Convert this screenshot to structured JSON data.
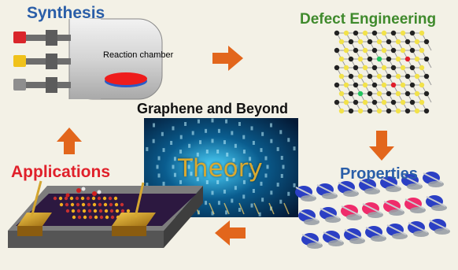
{
  "titles": {
    "synthesis": "Synthesis",
    "defect_engineering": "Defect Engineering",
    "center": "Graphene and Beyond",
    "applications": "Applications",
    "properties": "Properties"
  },
  "theory_label": "Theory",
  "reaction_chamber_label": "Reaction chamber",
  "colors": {
    "synthesis": "#2a5ea8",
    "defect_engineering": "#3f8a2c",
    "center": "#111111",
    "applications": "#e0202a",
    "properties": "#2a5ea8",
    "theory": "#d8a930",
    "arrow": "#e2661c"
  },
  "icons": [
    "arrow-right-icon",
    "arrow-down-icon",
    "arrow-left-icon",
    "arrow-up-icon"
  ]
}
